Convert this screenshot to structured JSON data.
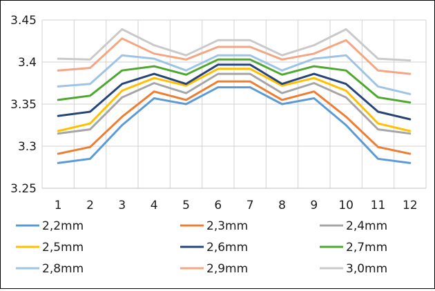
{
  "chart_data": {
    "type": "line",
    "title": "",
    "xlabel": "",
    "ylabel": "",
    "categories": [
      "1",
      "2",
      "3",
      "4",
      "5",
      "6",
      "7",
      "8",
      "9",
      "10",
      "11",
      "12"
    ],
    "ylim": [
      3.25,
      3.45
    ],
    "yticks": [
      "3.25",
      "3.3",
      "3.35",
      "3.4",
      "3.45"
    ],
    "grid": true,
    "legend_position": "bottom",
    "series": [
      {
        "name": "2,2mm",
        "color": "#5b9bd5",
        "values": [
          3.28,
          3.285,
          3.325,
          3.357,
          3.35,
          3.37,
          3.37,
          3.35,
          3.357,
          3.325,
          3.285,
          3.28
        ]
      },
      {
        "name": "2,3mm",
        "color": "#ed7d31",
        "values": [
          3.291,
          3.299,
          3.335,
          3.365,
          3.355,
          3.377,
          3.377,
          3.355,
          3.365,
          3.335,
          3.299,
          3.291
        ]
      },
      {
        "name": "2,4mm",
        "color": "#a5a5a5",
        "values": [
          3.315,
          3.32,
          3.358,
          3.375,
          3.363,
          3.386,
          3.386,
          3.363,
          3.375,
          3.358,
          3.32,
          3.315
        ]
      },
      {
        "name": "2,5mm",
        "color": "#ffc000",
        "values": [
          3.318,
          3.327,
          3.366,
          3.381,
          3.372,
          3.392,
          3.392,
          3.372,
          3.381,
          3.366,
          3.327,
          3.318
        ]
      },
      {
        "name": "2,6mm",
        "color": "#264478",
        "values": [
          3.336,
          3.341,
          3.374,
          3.386,
          3.374,
          3.397,
          3.397,
          3.374,
          3.386,
          3.374,
          3.341,
          3.332
        ]
      },
      {
        "name": "2,7mm",
        "color": "#4ea72e",
        "values": [
          3.355,
          3.36,
          3.39,
          3.395,
          3.385,
          3.403,
          3.403,
          3.385,
          3.395,
          3.39,
          3.358,
          3.352
        ]
      },
      {
        "name": "2,8mm",
        "color": "#9dc3e6",
        "values": [
          3.371,
          3.374,
          3.408,
          3.404,
          3.39,
          3.408,
          3.408,
          3.39,
          3.404,
          3.408,
          3.371,
          3.362
        ]
      },
      {
        "name": "2,9mm",
        "color": "#f4a582",
        "values": [
          3.39,
          3.393,
          3.428,
          3.41,
          3.403,
          3.418,
          3.418,
          3.403,
          3.41,
          3.426,
          3.39,
          3.386
        ]
      },
      {
        "name": "3,0mm",
        "color": "#c9c9c9",
        "values": [
          3.404,
          3.403,
          3.439,
          3.42,
          3.408,
          3.426,
          3.426,
          3.408,
          3.42,
          3.439,
          3.404,
          3.402
        ]
      }
    ]
  }
}
